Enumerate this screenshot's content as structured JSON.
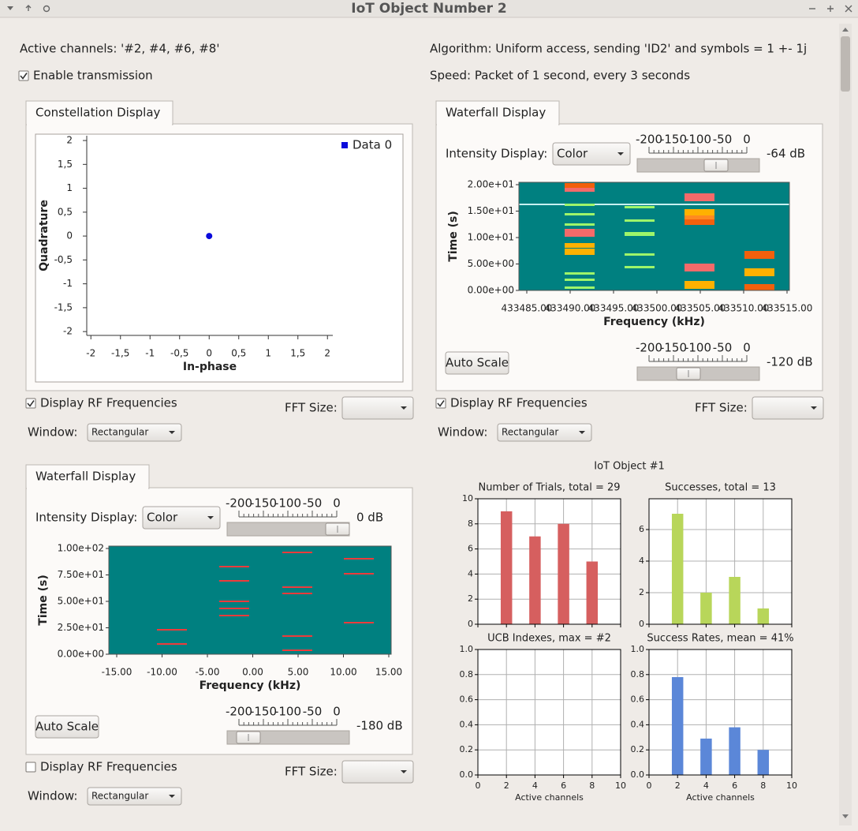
{
  "window": {
    "title": "IoT Object Number 2"
  },
  "header": {
    "active_channels": "Active channels: '#2, #4, #6, #8'",
    "enable_transmission": {
      "label": "Enable transmission",
      "checked": true
    },
    "algorithm": "Algorithm: Uniform access, sending 'ID2' and symbols = 1 +- 1j",
    "speed": "Speed: Packet of 1 second, every 3 seconds"
  },
  "constellation_panel": {
    "tab": "Constellation Display",
    "display_rf": {
      "label": "Display RF Frequencies",
      "checked": true
    },
    "fft_size": "FFT Size:",
    "window_label": "Window:",
    "window_value": "Rectangular"
  },
  "waterfall_top": {
    "tab": "Waterfall Display",
    "intensity_label": "Intensity Display:",
    "intensity_value": "Color",
    "max_slider_ticks": [
      -200,
      -150,
      -100,
      -50,
      0
    ],
    "max_level": "-64 dB",
    "yticks": [
      "2.00e+01",
      "1.50e+01",
      "1.00e+01",
      "5.00e+00",
      "0.00e+00"
    ],
    "ylabel": "Time (s)",
    "xticks": [
      "433485.00",
      "433490.00",
      "433495.00",
      "433500.00",
      "433505.00",
      "433510.00",
      "433515.00"
    ],
    "xlabel": "Frequency (kHz)",
    "auto_scale": "Auto Scale",
    "min_slider_ticks": [
      -200,
      -150,
      -100,
      -50,
      0
    ],
    "min_level": "-120 dB",
    "display_rf": {
      "label": "Display RF Frequencies",
      "checked": true
    },
    "fft_size": "FFT Size:",
    "window_label": "Window:",
    "window_value": "Rectangular"
  },
  "waterfall_bottom": {
    "tab": "Waterfall Display",
    "intensity_label": "Intensity Display:",
    "intensity_value": "Color",
    "max_slider_ticks": [
      -200,
      -150,
      -100,
      -50,
      0
    ],
    "max_level": "0 dB",
    "yticks": [
      "1.00e+02",
      "7.50e+01",
      "5.00e+01",
      "2.50e+01",
      "0.00e+00"
    ],
    "ylabel": "Time (s)",
    "xticks": [
      "-15.00",
      "-10.00",
      "-5.00",
      "0.00",
      "5.00",
      "10.00",
      "15.00"
    ],
    "xlabel": "Frequency (kHz)",
    "auto_scale": "Auto Scale",
    "min_slider_ticks": [
      -200,
      -150,
      -100,
      -50,
      0
    ],
    "min_level": "-180 dB",
    "display_rf": {
      "label": "Display RF Frequencies",
      "checked": false
    },
    "fft_size": "FFT Size:",
    "window_label": "Window:",
    "window_value": "Rectangular"
  },
  "plots_title": "IoT Object #1",
  "chart_data": [
    {
      "type": "scatter",
      "xlabel": "In-phase",
      "ylabel": "Quadrature",
      "xlim": [
        -2.07,
        2.09
      ],
      "ylim": [
        -2.08,
        2.1
      ],
      "xticks": [
        -2,
        {
          "value": -1.5,
          "label": "-1,5"
        },
        -1,
        {
          "value": -0.5,
          "label": "-0,5"
        },
        0,
        {
          "value": 0.5,
          "label": "0,5"
        },
        1,
        {
          "value": 1.5,
          "label": "1,5"
        },
        2
      ],
      "yticks": [
        -2,
        {
          "value": -1.5,
          "label": "-1,5"
        },
        -1,
        {
          "value": -0.5,
          "label": "-0,5"
        },
        0,
        {
          "value": 0.5,
          "label": "0,5"
        },
        1,
        {
          "value": 1.5,
          "label": "1,5"
        },
        2
      ],
      "legend": "upper right",
      "series": [
        {
          "name": "Data 0",
          "color": "#0a0adc",
          "x": [
            0
          ],
          "values": [
            0
          ]
        }
      ]
    },
    {
      "type": "bar",
      "title": "Number of Trials, total = 29",
      "x": [
        2,
        4,
        6,
        8
      ],
      "values": [
        9,
        7,
        8,
        5
      ],
      "color": "#d65f5f",
      "xlim": [
        0,
        10
      ],
      "ylim": [
        0,
        10
      ],
      "xticks": [
        0,
        2,
        4,
        6,
        8,
        10
      ],
      "yticks": [
        0,
        2,
        4,
        6,
        8,
        10
      ],
      "show_xtick_labels": false,
      "grid": true
    },
    {
      "type": "bar",
      "title": "Successes, total = 13",
      "x": [
        2,
        4,
        6,
        8
      ],
      "values": [
        7,
        2,
        3,
        1
      ],
      "color": "#b8d65a",
      "xlim": [
        0,
        10
      ],
      "ylim": [
        0,
        7.95
      ],
      "xticks": [
        0,
        2,
        4,
        6,
        8,
        10
      ],
      "yticks": [
        0,
        2,
        4,
        6
      ],
      "show_xtick_labels": false,
      "grid": true
    },
    {
      "type": "bar",
      "title": "UCB Indexes, max = #2",
      "xlabel": "Active channels",
      "xlim": [
        0,
        10
      ],
      "ylim": [
        0,
        1
      ],
      "xticks": [
        0,
        2,
        4,
        6,
        8,
        10
      ],
      "yticks": [
        {
          "value": 0,
          "label": "0.0"
        },
        0.2,
        0.4,
        0.6,
        0.8,
        {
          "value": 1,
          "label": "1.0"
        }
      ],
      "grid": true
    },
    {
      "type": "bar",
      "title": "Success Rates, mean = 41%",
      "xlabel": "Active channels",
      "x": [
        2,
        4,
        6,
        8
      ],
      "values": [
        0.78,
        0.29,
        0.38,
        0.2
      ],
      "color": "#5b87d8",
      "xlim": [
        0,
        10
      ],
      "ylim": [
        0,
        1
      ],
      "xticks": [
        0,
        2,
        4,
        6,
        8,
        10
      ],
      "yticks": [
        {
          "value": 0,
          "label": "0.0"
        },
        0.2,
        0.4,
        0.6,
        0.8,
        {
          "value": 1,
          "label": "1.0"
        }
      ],
      "grid": true
    }
  ]
}
